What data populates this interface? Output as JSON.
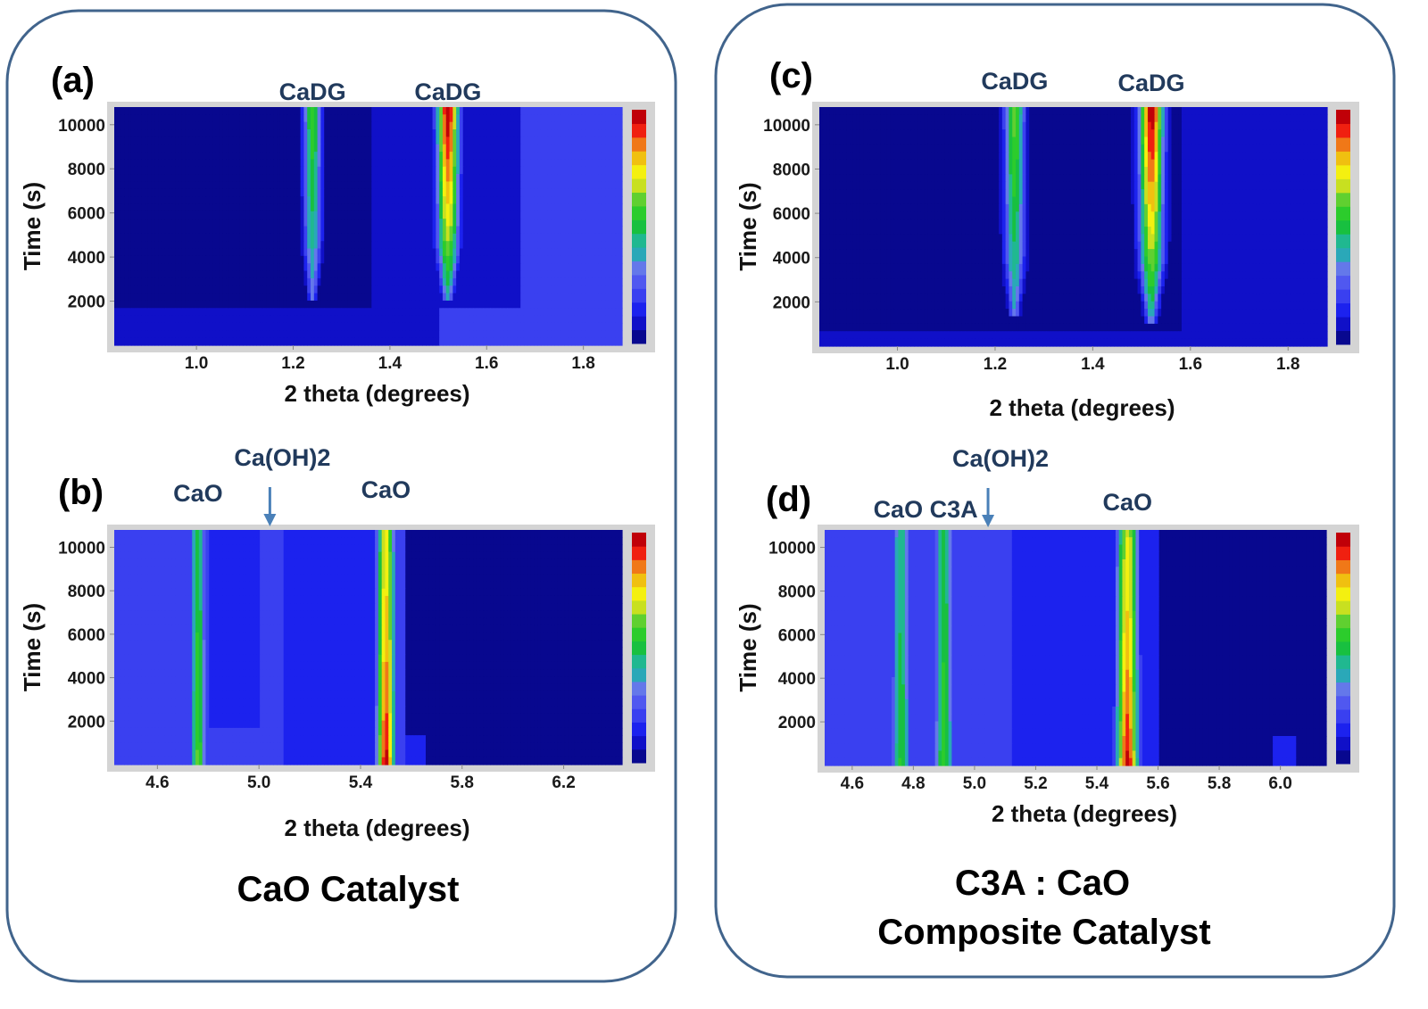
{
  "colors": {
    "frame": "#41648c",
    "annotation_text": "#213a5c",
    "arrow": "#4a80b8",
    "plot_border": "#d4d4d4"
  },
  "colormap": [
    "#08088f",
    "#1010c8",
    "#1c22ee",
    "#3a40f0",
    "#5058f0",
    "#6478ea",
    "#2aa8b8",
    "#20b890",
    "#18c040",
    "#2ccc2c",
    "#60d030",
    "#c8e020",
    "#f4f010",
    "#f0c010",
    "#f07818",
    "#f02010",
    "#c00008"
  ],
  "groups": [
    {
      "caption_lines": [
        "CaO Catalyst"
      ]
    },
    {
      "caption_lines": [
        "C3A : CaO",
        "Composite Catalyst"
      ]
    }
  ],
  "chart_data": [
    {
      "panel": "(a)",
      "type": "heatmap",
      "xlabel": "2 theta (degrees)",
      "ylabel": "Time (s)",
      "xlim": [
        0.83,
        1.88
      ],
      "ylim": [
        0,
        10800
      ],
      "xticks": [
        1.0,
        1.2,
        1.4,
        1.6,
        1.8
      ],
      "xtick_labels": [
        "1.0",
        "1.2",
        "1.4",
        "1.6",
        "1.8"
      ],
      "yticks": [
        2000,
        4000,
        6000,
        8000,
        10000
      ],
      "ytick_labels": [
        "2000",
        "4000",
        "6000",
        "8000",
        "10000"
      ],
      "annotations": [
        {
          "text": "CaDG",
          "x": 1.24
        },
        {
          "text": "CaDG",
          "x": 1.52
        }
      ],
      "background": [
        {
          "x": [
            0.83,
            1.88
          ],
          "t": [
            0,
            10800
          ],
          "level": 0.02
        },
        {
          "x": [
            1.36,
            1.67
          ],
          "t": [
            0,
            10800
          ],
          "level": 0.1
        },
        {
          "x": [
            1.67,
            1.88
          ],
          "t": [
            0,
            10800
          ],
          "level": 0.2
        },
        {
          "x": [
            0.83,
            1.5
          ],
          "t": [
            0,
            1800
          ],
          "level": 0.1
        },
        {
          "x": [
            1.5,
            1.88
          ],
          "t": [
            0,
            1800
          ],
          "level": 0.2
        }
      ],
      "peaks": [
        {
          "label": "CaDG",
          "x": 1.24,
          "width": 0.018,
          "onset": 2100,
          "amp_start": 0.28,
          "amp_end": 0.58
        },
        {
          "label": "CaDG",
          "x": 1.52,
          "width": 0.022,
          "onset": 1900,
          "amp_start": 0.3,
          "amp_end": 1.0
        }
      ]
    },
    {
      "panel": "(b)",
      "type": "heatmap",
      "xlabel": "2 theta (degrees)",
      "ylabel": "Time (s)",
      "xlim": [
        4.43,
        6.43
      ],
      "ylim": [
        0,
        10800
      ],
      "xticks": [
        4.6,
        5.0,
        5.4,
        5.8,
        6.2
      ],
      "xtick_labels": [
        "4.6",
        "5.0",
        "5.4",
        "5.8",
        "6.2"
      ],
      "yticks": [
        2000,
        4000,
        6000,
        8000,
        10000
      ],
      "ytick_labels": [
        "2000",
        "4000",
        "6000",
        "8000",
        "10000"
      ],
      "annotations": [
        {
          "text": "CaO",
          "x": 4.76
        },
        {
          "text": "Ca(OH)2",
          "x": 5.05,
          "arrow": true
        },
        {
          "text": "CaO",
          "x": 5.5
        }
      ],
      "background": [
        {
          "x": [
            4.43,
            5.57
          ],
          "t": [
            0,
            10800
          ],
          "level": 0.2
        },
        {
          "x": [
            4.8,
            5.0
          ],
          "t": [
            1600,
            10800
          ],
          "level": 0.12
        },
        {
          "x": [
            5.1,
            5.45
          ],
          "t": [
            0,
            10800
          ],
          "level": 0.12
        },
        {
          "x": [
            5.57,
            6.43
          ],
          "t": [
            0,
            10800
          ],
          "level": 0.02
        },
        {
          "x": [
            5.57,
            5.65
          ],
          "t": [
            0,
            1500
          ],
          "level": 0.12
        }
      ],
      "peaks": [
        {
          "label": "CaO",
          "x": 4.76,
          "width": 0.03,
          "onset": 0,
          "amp_start": 0.62,
          "amp_end": 0.5
        },
        {
          "label": "Ca(OH)2",
          "x": 5.05,
          "width": 0.04,
          "onset": 0,
          "amp_start": 0.1,
          "amp_end": 0.14
        },
        {
          "label": "CaO",
          "x": 5.5,
          "width": 0.035,
          "onset": 0,
          "amp_start": 1.0,
          "amp_end": 0.72
        }
      ]
    },
    {
      "panel": "(c)",
      "type": "heatmap",
      "xlabel": "2 theta (degrees)",
      "ylabel": "Time (s)",
      "xlim": [
        0.84,
        1.88
      ],
      "ylim": [
        0,
        10800
      ],
      "xticks": [
        1.0,
        1.2,
        1.4,
        1.6,
        1.8
      ],
      "xtick_labels": [
        "1.0",
        "1.2",
        "1.4",
        "1.6",
        "1.8"
      ],
      "yticks": [
        2000,
        4000,
        6000,
        8000,
        10000
      ],
      "ytick_labels": [
        "2000",
        "4000",
        "6000",
        "8000",
        "10000"
      ],
      "annotations": [
        {
          "text": "CaDG",
          "x": 1.24
        },
        {
          "text": "CaDG",
          "x": 1.52
        }
      ],
      "background": [
        {
          "x": [
            0.84,
            1.88
          ],
          "t": [
            0,
            10800
          ],
          "level": 0.02
        },
        {
          "x": [
            1.58,
            1.88
          ],
          "t": [
            0,
            10800
          ],
          "level": 0.1
        },
        {
          "x": [
            0.84,
            1.88
          ],
          "t": [
            0,
            700
          ],
          "level": 0.1
        }
      ],
      "peaks": [
        {
          "label": "CaDG",
          "x": 1.24,
          "width": 0.02,
          "onset": 1200,
          "amp_start": 0.3,
          "amp_end": 0.62
        },
        {
          "label": "CaDG",
          "x": 1.52,
          "width": 0.024,
          "onset": 1100,
          "amp_start": 0.3,
          "amp_end": 1.0
        }
      ]
    },
    {
      "panel": "(d)",
      "type": "heatmap",
      "xlabel": "2 theta (degrees)",
      "ylabel": "Time (s)",
      "xlim": [
        4.51,
        6.15
      ],
      "ylim": [
        0,
        10800
      ],
      "xticks": [
        4.6,
        4.8,
        5.0,
        5.2,
        5.4,
        5.6,
        5.8,
        6.0
      ],
      "xtick_labels": [
        "4.6",
        "4.8",
        "5.0",
        "5.2",
        "5.4",
        "5.6",
        "5.8",
        "6.0"
      ],
      "yticks": [
        2000,
        4000,
        6000,
        8000,
        10000
      ],
      "ytick_labels": [
        "2000",
        "4000",
        "6000",
        "8000",
        "10000"
      ],
      "annotations": [
        {
          "text": "CaO C3A",
          "x": 4.84
        },
        {
          "text": "Ca(OH)2",
          "x": 5.05,
          "arrow": true
        },
        {
          "text": "CaO",
          "x": 5.5
        }
      ],
      "background": [
        {
          "x": [
            4.51,
            5.12
          ],
          "t": [
            0,
            10800
          ],
          "level": 0.2
        },
        {
          "x": [
            5.12,
            5.6
          ],
          "t": [
            0,
            10800
          ],
          "level": 0.12
        },
        {
          "x": [
            5.6,
            6.15
          ],
          "t": [
            0,
            10800
          ],
          "level": 0.02
        },
        {
          "x": [
            5.97,
            6.05
          ],
          "t": [
            0,
            1200
          ],
          "level": 0.12
        }
      ],
      "peaks": [
        {
          "label": "CaO",
          "x": 4.76,
          "width": 0.03,
          "onset": 0,
          "amp_start": 0.55,
          "amp_end": 0.45
        },
        {
          "label": "C3A",
          "x": 4.9,
          "width": 0.03,
          "onset": 0,
          "amp_start": 0.58,
          "amp_end": 0.5
        },
        {
          "label": "Ca(OH)2",
          "x": 5.05,
          "width": 0.03,
          "onset": 0,
          "amp_start": 0.08,
          "amp_end": 0.12
        },
        {
          "label": "CaO",
          "x": 5.5,
          "width": 0.035,
          "onset": 0,
          "amp_start": 1.0,
          "amp_end": 0.7
        }
      ]
    }
  ]
}
